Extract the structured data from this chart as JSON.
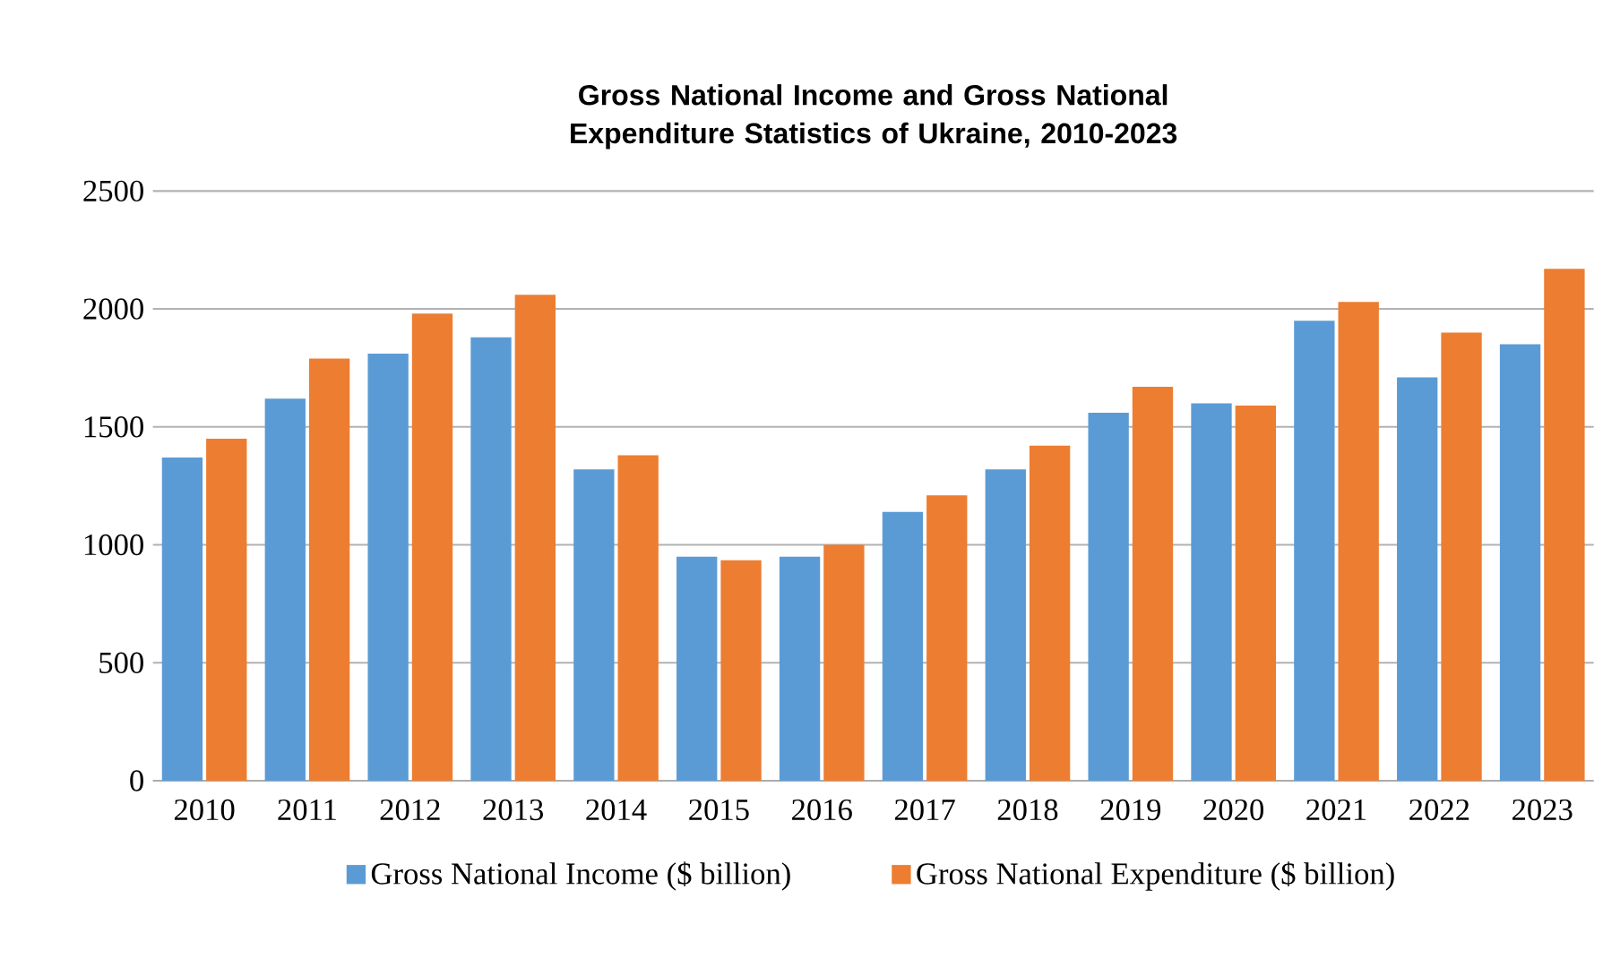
{
  "chart_data": {
    "type": "bar",
    "title": "Gross National Income and Gross National Expenditure Statistics of Ukraine, 2010-2023",
    "categories": [
      "2010",
      "2011",
      "2012",
      "2013",
      "2014",
      "2015",
      "2016",
      "2017",
      "2018",
      "2019",
      "2020",
      "2021",
      "2022",
      "2023"
    ],
    "series": [
      {
        "name": "Gross National Income ($ billion)",
        "color": "#5b9bd5",
        "values": [
          1370,
          1620,
          1810,
          1880,
          1320,
          950,
          950,
          1140,
          1320,
          1560,
          1600,
          1950,
          1710,
          1850
        ]
      },
      {
        "name": "Gross National Expenditure ($ billion)",
        "color": "#ed7d31",
        "values": [
          1450,
          1790,
          1980,
          2060,
          1380,
          935,
          1000,
          1210,
          1420,
          1670,
          1590,
          2030,
          1900,
          2170
        ]
      }
    ],
    "ylim": [
      0,
      2500
    ],
    "yticks": [
      0,
      500,
      1000,
      1500,
      2000,
      2500
    ],
    "grid": "y",
    "legend": "bottom"
  }
}
